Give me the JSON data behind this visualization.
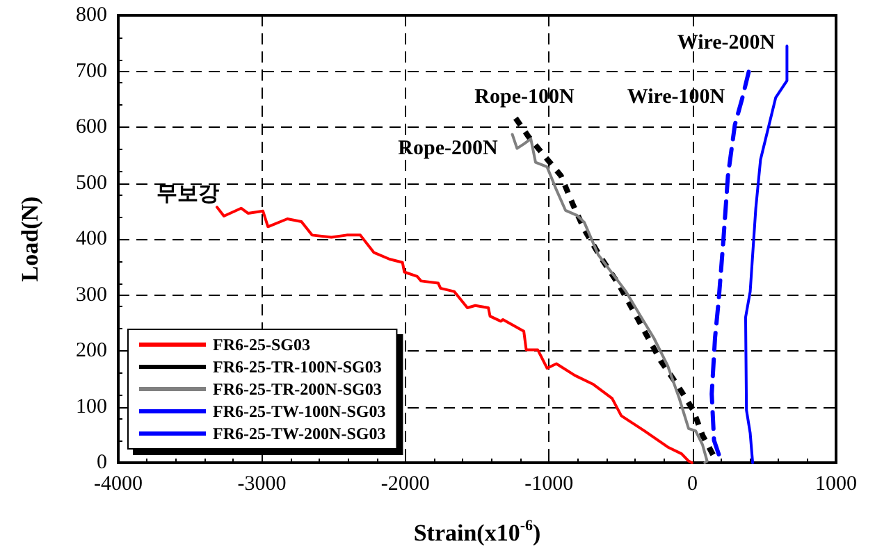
{
  "chart_data": {
    "type": "line",
    "xlabel": "Strain(x10$^{-6}$)",
    "ylabel": "Load(N)",
    "xlim": [
      -4000,
      1000
    ],
    "xticks": [
      -4000,
      -3000,
      -2000,
      -1000,
      0,
      1000
    ],
    "ylim": [
      0,
      800
    ],
    "yticks": [
      0,
      100,
      200,
      300,
      400,
      500,
      600,
      700,
      800
    ],
    "grid": true,
    "legend": "bottom left",
    "marker": "none",
    "annotations": [
      "Rope-100N",
      "Rope-200N",
      "Wire-100N",
      "Wire-200N",
      "무보강"
    ],
    "series": [
      {
        "name": "FR6-25-SG03",
        "color": "#ff0000",
        "line_style": "solid",
        "x": [
          -3312,
          -3264,
          -3144,
          -3096,
          -2992,
          -2957,
          -2822,
          -2724,
          -2650,
          -2515,
          -2408,
          -2314,
          -2220,
          -2110,
          -2020,
          -2007,
          -1917,
          -1891,
          -1771,
          -1755,
          -1659,
          -1568,
          -1513,
          -1422,
          -1410,
          -1335,
          -1320,
          -1175,
          -1158,
          -1078,
          -1013,
          -948,
          -819,
          -690,
          -560,
          -496,
          -335,
          -172,
          -76,
          -27,
          -4
        ],
        "values": [
          457,
          441,
          455,
          446,
          450,
          422,
          436,
          431,
          407,
          403,
          407,
          407,
          376,
          364,
          358,
          341,
          333,
          325,
          321,
          312,
          306,
          277,
          281,
          277,
          262,
          253,
          256,
          235,
          202,
          202,
          169,
          177,
          156,
          140,
          115,
          84,
          57,
          28,
          16,
          3,
          0
        ]
      },
      {
        "name": "FR6-25-TR-100N-SG03",
        "color": "#000000",
        "line_style": "dotted",
        "x": [
          -1232,
          -1142,
          -916,
          -835,
          -754,
          -641,
          -512,
          -415,
          -221,
          -108,
          5,
          70,
          167
        ],
        "values": [
          616,
          583,
          513,
          463,
          417,
          368,
          318,
          273,
          182,
          140,
          94,
          49,
          3
        ]
      },
      {
        "name": "FR6-25-TR-200N-SG03",
        "color": "#808080",
        "line_style": "solid",
        "x": [
          -1255,
          -1222,
          -1174,
          -1126,
          -1093,
          -1013,
          -948,
          -884,
          -803,
          -754,
          -657,
          -560,
          -463,
          -366,
          -269,
          -172,
          -92,
          -27,
          22,
          70,
          102,
          86
        ],
        "values": [
          587,
          562,
          570,
          579,
          537,
          529,
          488,
          451,
          442,
          430,
          372,
          339,
          306,
          264,
          223,
          173,
          115,
          61,
          57,
          32,
          3,
          0
        ]
      },
      {
        "name": "FR6-25-TW-100N-SG03",
        "color": "#0000ff",
        "line_style": "dashed",
        "x": [
          392,
          344,
          295,
          247,
          215,
          182,
          157,
          134,
          150,
          199
        ],
        "values": [
          699,
          649,
          604,
          513,
          397,
          289,
          223,
          123,
          40,
          3
        ]
      },
      {
        "name": "FR6-25-TW-200N-SG03",
        "color": "#0000ff",
        "line_style": "solid",
        "x": [
          658,
          658,
          580,
          474,
          441,
          402,
          370,
          376,
          402,
          419
        ],
        "values": [
          745,
          683,
          653,
          542,
          455,
          306,
          260,
          94,
          53,
          0
        ]
      }
    ]
  }
}
